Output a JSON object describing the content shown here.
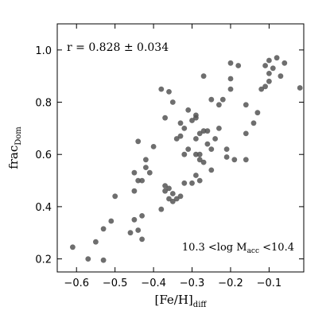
{
  "chart_data": {
    "type": "scatter",
    "xlabel_main": "[Fe/H]",
    "xlabel_sub": "diff",
    "ylabel_main": "frac",
    "ylabel_sub": "Dom",
    "xlim": [
      -0.65,
      -0.01
    ],
    "ylim": [
      0.15,
      1.1
    ],
    "xticks": [
      -0.6,
      -0.5,
      -0.4,
      -0.3,
      -0.2,
      -0.1
    ],
    "xtick_labels": [
      "−0.6",
      "−0.5",
      "−0.4",
      "−0.3",
      "−0.2",
      "−0.1"
    ],
    "yticks": [
      0.2,
      0.4,
      0.6,
      0.8,
      1.0
    ],
    "ytick_labels": [
      "0.2",
      "0.4",
      "0.6",
      "0.8",
      "1.0"
    ],
    "correlation_text": "r = 0.828 ± 0.034",
    "annotation": {
      "pre": "10.3 <log M",
      "sub": "acc",
      "post": " <10.4"
    },
    "point_color": "#555555",
    "series": [
      {
        "x": [
          -0.61,
          -0.57,
          -0.55,
          -0.53,
          -0.53,
          -0.51,
          -0.5,
          -0.46,
          -0.45,
          -0.44,
          -0.44,
          -0.43,
          -0.43,
          -0.43,
          -0.42,
          -0.42,
          -0.41,
          -0.45,
          -0.45,
          -0.44,
          -0.4,
          -0.38,
          -0.37,
          -0.37,
          -0.36,
          -0.36,
          -0.35,
          -0.34,
          -0.33,
          -0.32,
          -0.3,
          -0.33,
          -0.32,
          -0.31,
          -0.29,
          -0.29,
          -0.28,
          -0.28,
          -0.27,
          -0.26,
          -0.28,
          -0.29,
          -0.29,
          -0.3,
          -0.31,
          -0.29,
          -0.28,
          -0.25,
          -0.25,
          -0.24,
          -0.23,
          -0.26,
          -0.27,
          -0.23,
          -0.22,
          -0.2,
          -0.2,
          -0.18,
          -0.16,
          -0.16,
          -0.14,
          -0.12,
          -0.11,
          -0.11,
          -0.1,
          -0.09,
          -0.08,
          -0.07,
          -0.06,
          -0.1,
          -0.13,
          -0.2,
          -0.21,
          -0.19,
          -0.25,
          -0.27,
          -0.34,
          -0.35,
          -0.37,
          -0.38,
          -0.36,
          -0.32,
          -0.21,
          -0.16,
          -0.02,
          -0.1,
          -0.33,
          -0.35
        ],
        "y": [
          0.245,
          0.2,
          0.265,
          0.195,
          0.315,
          0.345,
          0.44,
          0.3,
          0.35,
          0.31,
          0.5,
          0.5,
          0.365,
          0.275,
          0.55,
          0.58,
          0.53,
          0.46,
          0.53,
          0.65,
          0.63,
          0.39,
          0.46,
          0.48,
          0.43,
          0.47,
          0.45,
          0.43,
          0.44,
          0.49,
          0.49,
          0.67,
          0.6,
          0.62,
          0.6,
          0.74,
          0.68,
          0.6,
          0.57,
          0.64,
          0.5,
          0.52,
          0.66,
          0.73,
          0.77,
          0.75,
          0.58,
          0.54,
          0.62,
          0.66,
          0.7,
          0.69,
          0.69,
          0.79,
          0.81,
          0.85,
          0.95,
          0.94,
          0.79,
          0.68,
          0.72,
          0.85,
          0.86,
          0.94,
          0.96,
          0.93,
          0.97,
          0.9,
          0.95,
          0.88,
          0.76,
          0.89,
          0.59,
          0.58,
          0.81,
          0.9,
          0.66,
          0.8,
          0.74,
          0.85,
          0.84,
          0.7,
          0.62,
          0.58,
          0.855,
          0.91,
          0.72,
          0.42
        ],
        "shades": []
      }
    ]
  }
}
